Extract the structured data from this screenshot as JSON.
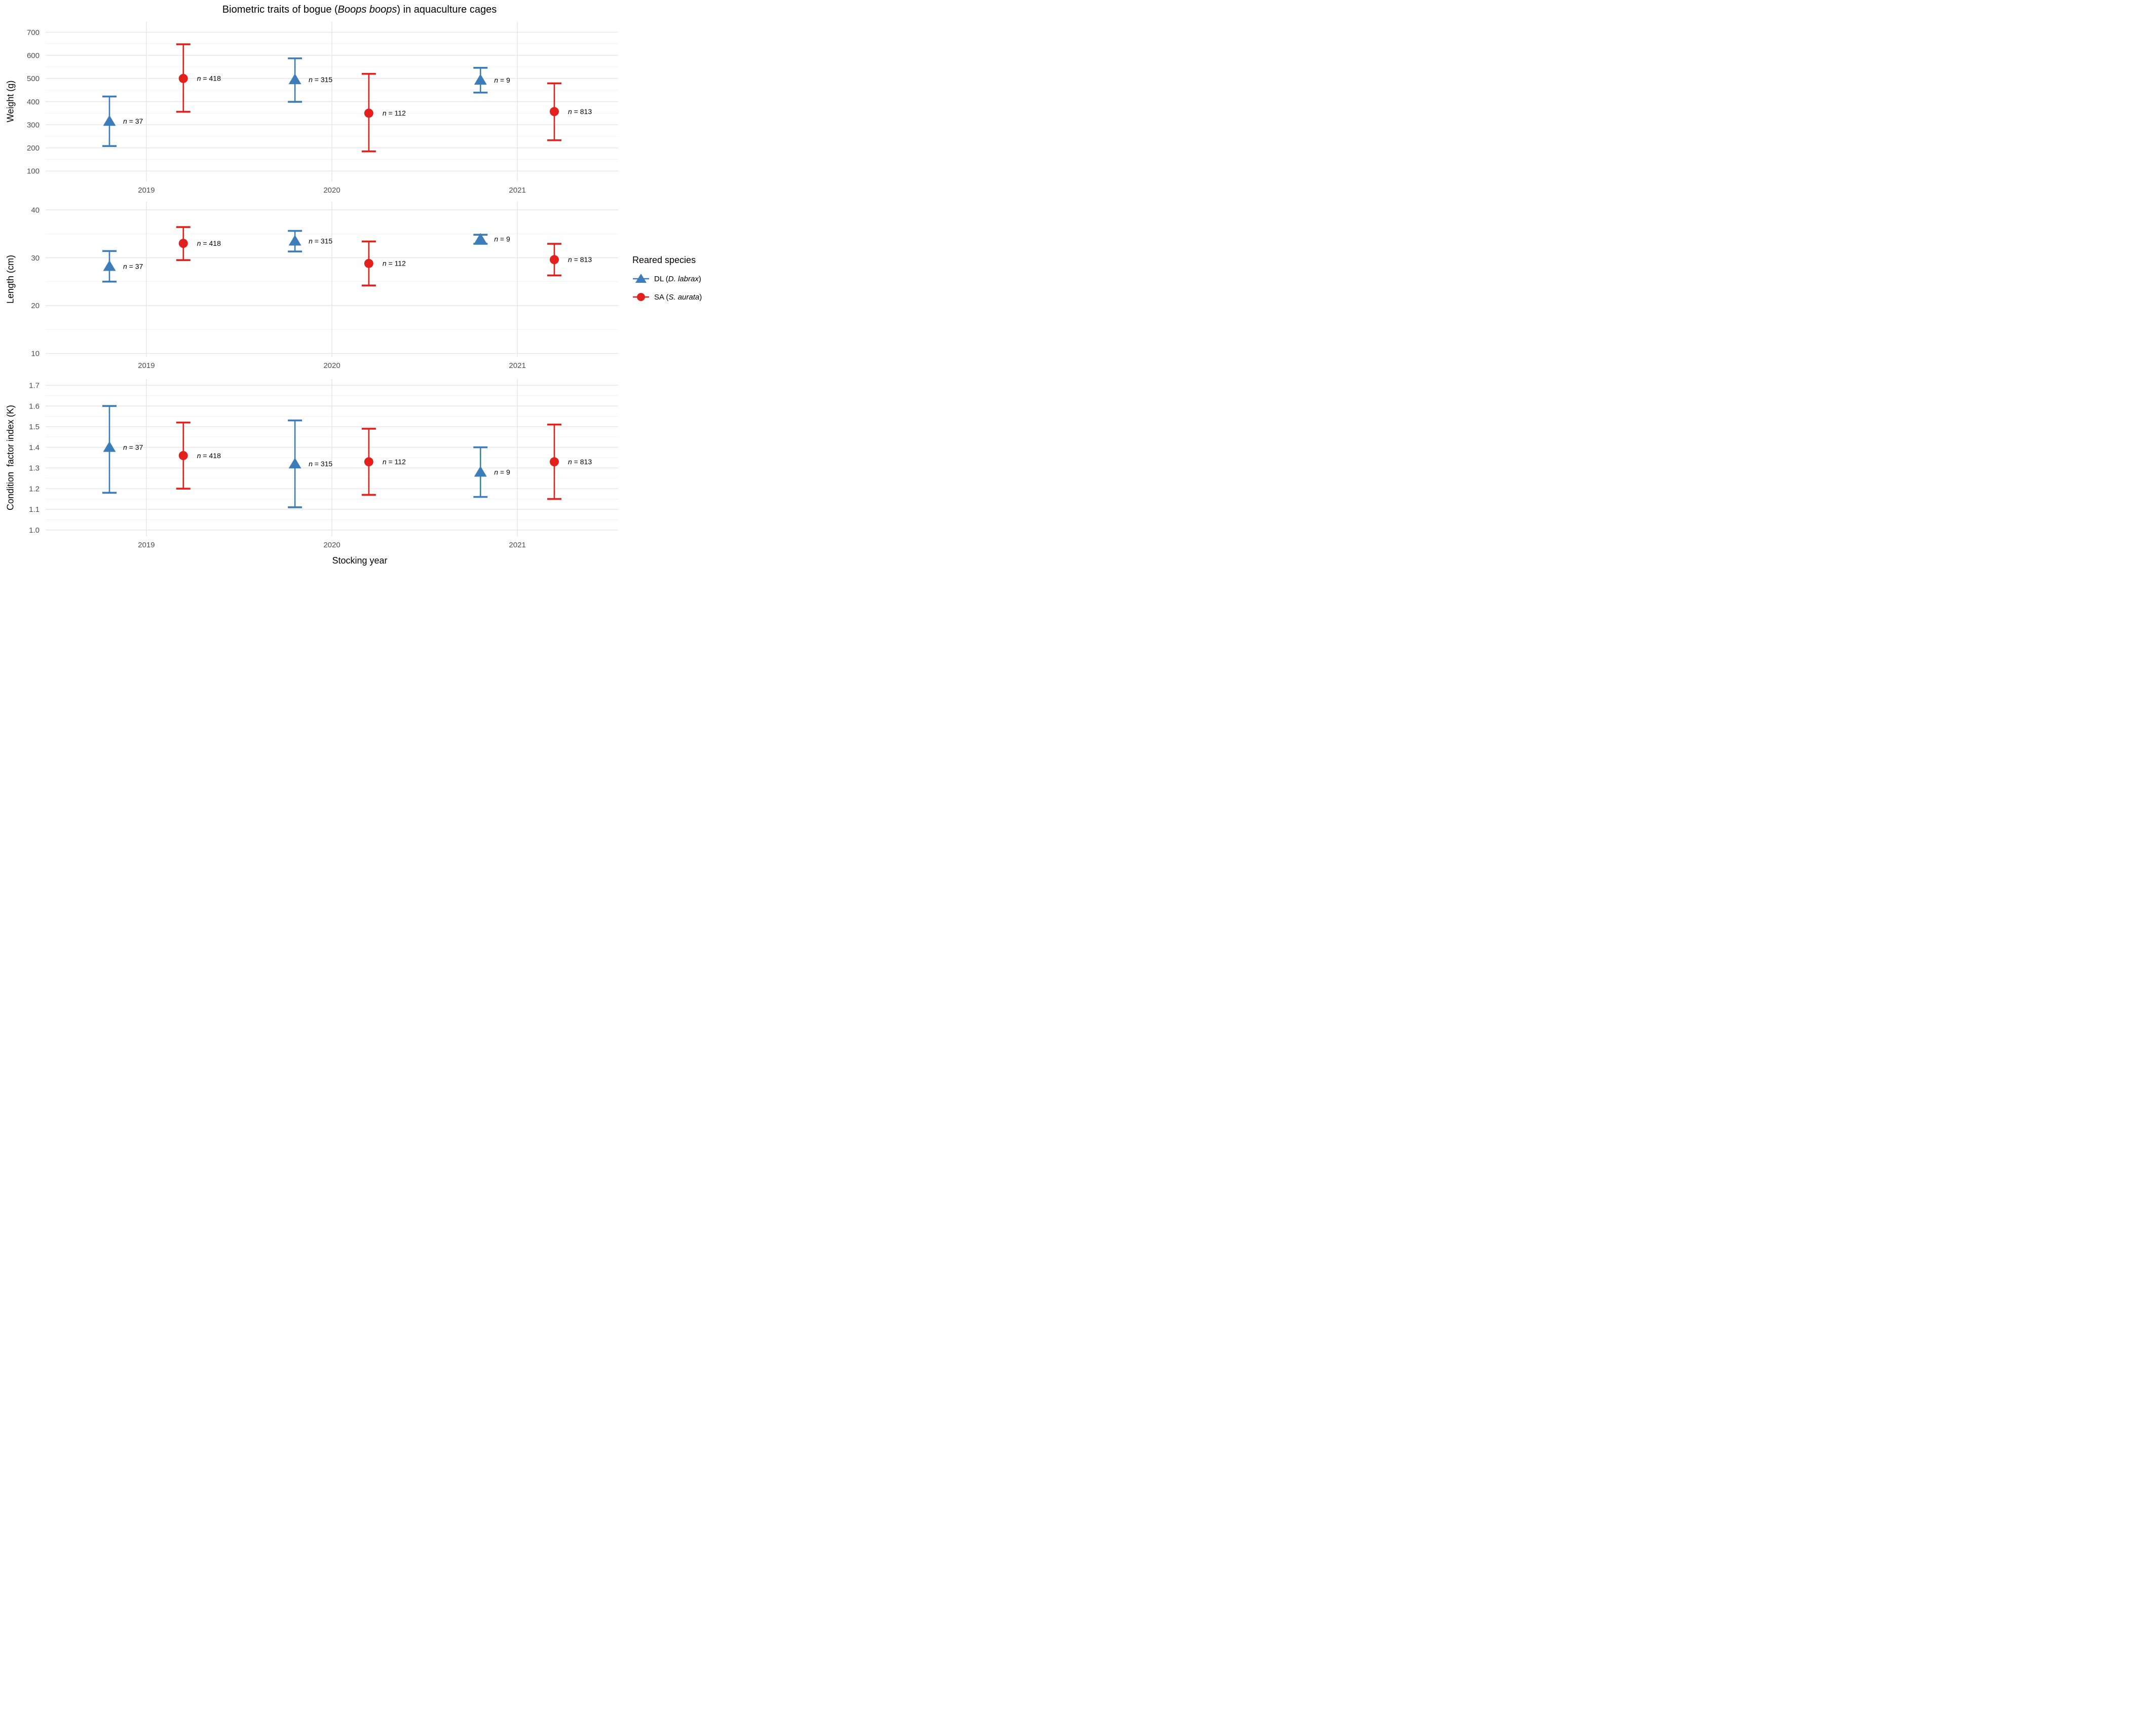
{
  "title": {
    "prefix": "Biometric traits of bogue (",
    "italic": "Boops boops",
    "suffix": ") in aquaculture cages"
  },
  "xlabel": "Stocking year",
  "categories": [
    "2019",
    "2020",
    "2021"
  ],
  "legend": {
    "title": "Reared species",
    "items": [
      {
        "label_prefix": "DL (",
        "label_italic": "D. labrax",
        "label_suffix": ")",
        "marker": "triangle",
        "color": "#3B7CB9"
      },
      {
        "label_prefix": "SA (",
        "label_italic": "S. aurata",
        "label_suffix": ")",
        "marker": "circle",
        "color": "#E2201C"
      }
    ]
  },
  "n_label": {
    "symbol": "n",
    "separator": " = "
  },
  "colors": {
    "grid_major": "#e4e4e4",
    "grid_minor": "#f1f1f1",
    "tick_text": "#4d4d4d",
    "dl_blue": "#3B7CB9",
    "sa_red": "#E2201C"
  },
  "chart_data": [
    {
      "type": "errorbar",
      "panel": "weight",
      "ylabel": "Weight (g)",
      "ylim": [
        55,
        745
      ],
      "yticks": [
        100,
        200,
        300,
        400,
        500,
        600,
        700
      ],
      "ytick_labels": [
        "100",
        "200",
        "300",
        "400",
        "500",
        "600",
        "700"
      ],
      "yminor": [
        150,
        250,
        350,
        450,
        550,
        650
      ],
      "series": [
        {
          "name": "DL (D. labrax)",
          "marker": "triangle",
          "color": "#3B7CB9",
          "means": [
            315,
            495,
            493
          ],
          "lower": [
            208,
            399,
            439
          ],
          "upper": [
            422,
            587,
            546
          ],
          "n": [
            37,
            315,
            9
          ]
        },
        {
          "name": "SA (S. aurata)",
          "marker": "circle",
          "color": "#E2201C",
          "means": [
            500,
            350,
            357
          ],
          "lower": [
            356,
            185,
            233
          ],
          "upper": [
            648,
            520,
            479
          ],
          "n": [
            418,
            112,
            813
          ]
        }
      ]
    },
    {
      "type": "errorbar",
      "panel": "length",
      "ylabel": "Length (cm)",
      "ylim": [
        9.3,
        41.7
      ],
      "yticks": [
        10,
        20,
        30,
        40
      ],
      "ytick_labels": [
        "10",
        "20",
        "30",
        "40"
      ],
      "yminor": [
        15,
        25,
        35
      ],
      "series": [
        {
          "name": "DL (D. labrax)",
          "marker": "triangle",
          "color": "#3B7CB9",
          "means": [
            28.2,
            33.5,
            33.9
          ],
          "lower": [
            25.0,
            31.3,
            32.9
          ],
          "upper": [
            31.4,
            35.6,
            34.8
          ],
          "n": [
            37,
            315,
            9
          ]
        },
        {
          "name": "SA (S. aurata)",
          "marker": "circle",
          "color": "#E2201C",
          "means": [
            33.0,
            28.8,
            29.6
          ],
          "lower": [
            29.5,
            24.2,
            26.3
          ],
          "upper": [
            36.4,
            33.4,
            32.9
          ],
          "n": [
            418,
            112,
            813
          ]
        }
      ]
    },
    {
      "type": "errorbar",
      "panel": "condition-factor",
      "ylabel": "Condition  factor index (K)",
      "ylim": [
        0.97,
        1.73
      ],
      "yticks": [
        1.0,
        1.1,
        1.2,
        1.3,
        1.4,
        1.5,
        1.6,
        1.7
      ],
      "ytick_labels": [
        "1.0",
        "1.1",
        "1.2",
        "1.3",
        "1.4",
        "1.5",
        "1.6",
        "1.7"
      ],
      "yminor": [
        1.05,
        1.15,
        1.25,
        1.35,
        1.45,
        1.55,
        1.65
      ],
      "series": [
        {
          "name": "DL (D. labrax)",
          "marker": "triangle",
          "color": "#3B7CB9",
          "means": [
            1.4,
            1.32,
            1.28
          ],
          "lower": [
            1.18,
            1.11,
            1.16
          ],
          "upper": [
            1.6,
            1.53,
            1.4
          ],
          "n": [
            37,
            315,
            9
          ]
        },
        {
          "name": "SA (S. aurata)",
          "marker": "circle",
          "color": "#E2201C",
          "means": [
            1.36,
            1.33,
            1.33
          ],
          "lower": [
            1.2,
            1.17,
            1.15
          ],
          "upper": [
            1.52,
            1.49,
            1.51
          ],
          "n": [
            418,
            112,
            813
          ]
        }
      ]
    }
  ]
}
